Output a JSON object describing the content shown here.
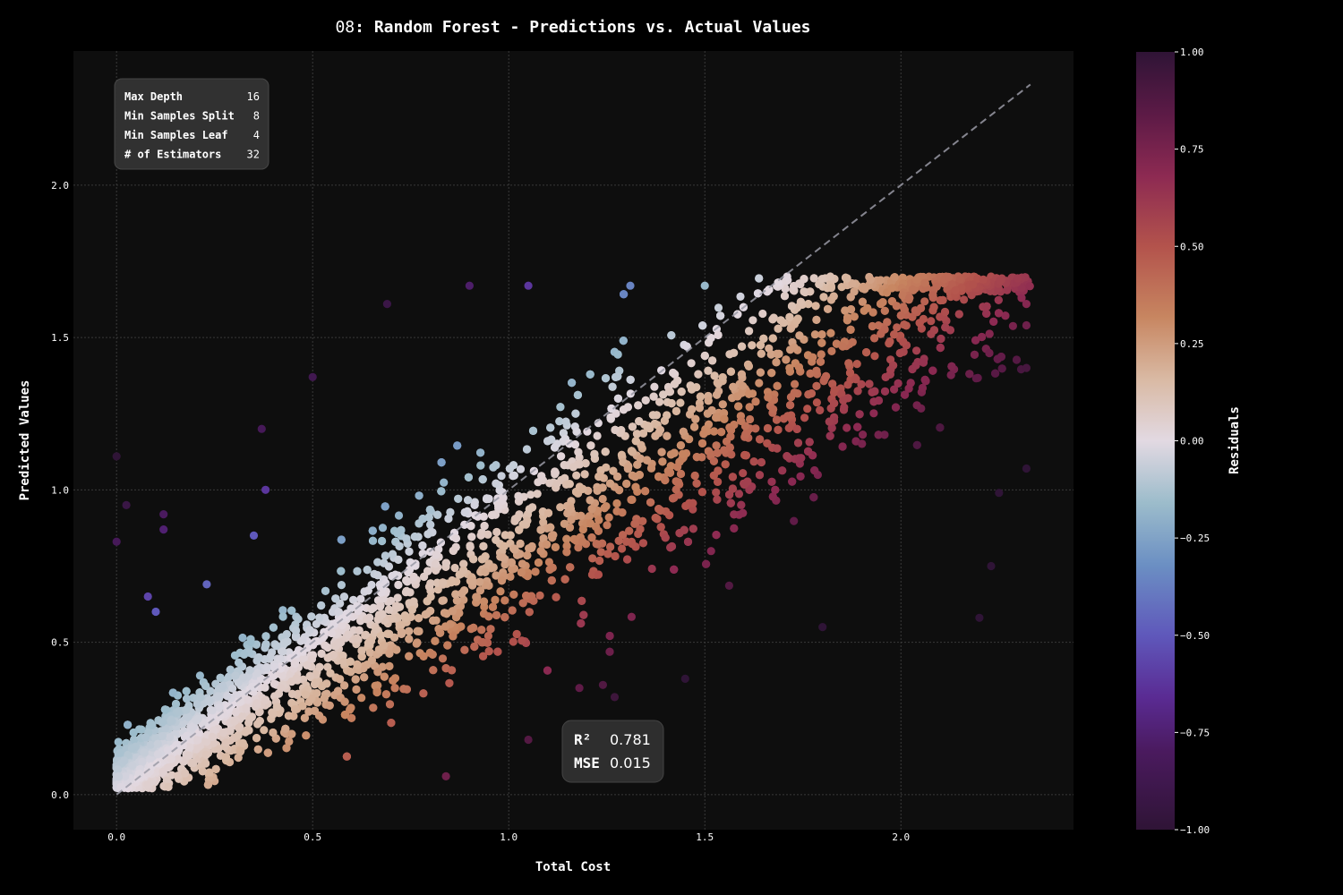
{
  "chart_data": {
    "type": "scatter",
    "title_prefix": "08",
    "title_sep": ": ",
    "title_main": "Random Forest - Predictions vs. Actual Values",
    "xlabel": "Total Cost",
    "ylabel": "Predicted Values",
    "xlim": [
      -0.11,
      2.44
    ],
    "ylim": [
      -0.115,
      2.44
    ],
    "x_ticks": [
      "0.0",
      "0.5",
      "1.0",
      "1.5",
      "2.0"
    ],
    "x_tick_values": [
      0,
      0.5,
      1.0,
      1.5,
      2.0
    ],
    "y_ticks": [
      "0.0",
      "0.5",
      "1.0",
      "1.5",
      "2.0"
    ],
    "y_tick_values": [
      0,
      0.5,
      1.0,
      1.5,
      2.0
    ],
    "grid": true,
    "reference_line": {
      "from": [
        0,
        0
      ],
      "to": [
        2.33,
        2.33
      ],
      "style": "dashed"
    },
    "colorbar": {
      "label": "Residuals",
      "range": [
        -1.0,
        1.0
      ],
      "ticks": [
        "1.00",
        "0.75",
        "0.50",
        "0.25",
        "0.00",
        "−0.25",
        "−0.50",
        "−0.75",
        "−1.00"
      ],
      "tick_values": [
        1.0,
        0.75,
        0.5,
        0.25,
        0.0,
        -0.25,
        -0.5,
        -0.75,
        -1.0
      ],
      "colormap": "twilight_shifted"
    },
    "params": [
      {
        "name": "Max Depth",
        "value": "16"
      },
      {
        "name": "Min Samples Split",
        "value": "8"
      },
      {
        "name": "Min Samples Leaf",
        "value": "4"
      },
      {
        "name": "# of Estimators",
        "value": "32"
      }
    ],
    "metrics": [
      {
        "name": "R²",
        "value": "0.781"
      },
      {
        "name": "MSE",
        "value": "0.015"
      }
    ],
    "points_note_count": 420,
    "sample_points": [
      [
        0.0,
        0.83
      ],
      [
        0.0,
        1.11
      ],
      [
        0.025,
        0.95
      ],
      [
        0.12,
        0.92
      ],
      [
        0.12,
        0.87
      ],
      [
        0.37,
        1.2
      ],
      [
        0.38,
        1.0
      ],
      [
        0.69,
        1.61
      ],
      [
        0.5,
        1.37
      ],
      [
        0.9,
        1.67
      ],
      [
        1.05,
        1.67
      ],
      [
        1.31,
        1.67
      ],
      [
        1.5,
        1.67
      ],
      [
        1.71,
        1.7
      ],
      [
        1.82,
        1.7
      ],
      [
        2.04,
        1.69
      ],
      [
        2.21,
        1.69
      ],
      [
        2.32,
        1.61
      ],
      [
        2.32,
        1.54
      ],
      [
        2.32,
        1.4
      ],
      [
        2.32,
        1.07
      ],
      [
        2.25,
        0.99
      ],
      [
        2.23,
        0.75
      ],
      [
        2.2,
        0.58
      ],
      [
        1.8,
        0.55
      ],
      [
        1.45,
        0.38
      ],
      [
        1.27,
        0.32
      ],
      [
        1.24,
        0.36
      ],
      [
        0.84,
        0.06
      ],
      [
        1.05,
        0.18
      ],
      [
        1.18,
        0.35
      ],
      [
        0.23,
        0.69
      ],
      [
        0.35,
        0.85
      ],
      [
        0.08,
        0.65
      ],
      [
        0.1,
        0.6
      ]
    ]
  }
}
